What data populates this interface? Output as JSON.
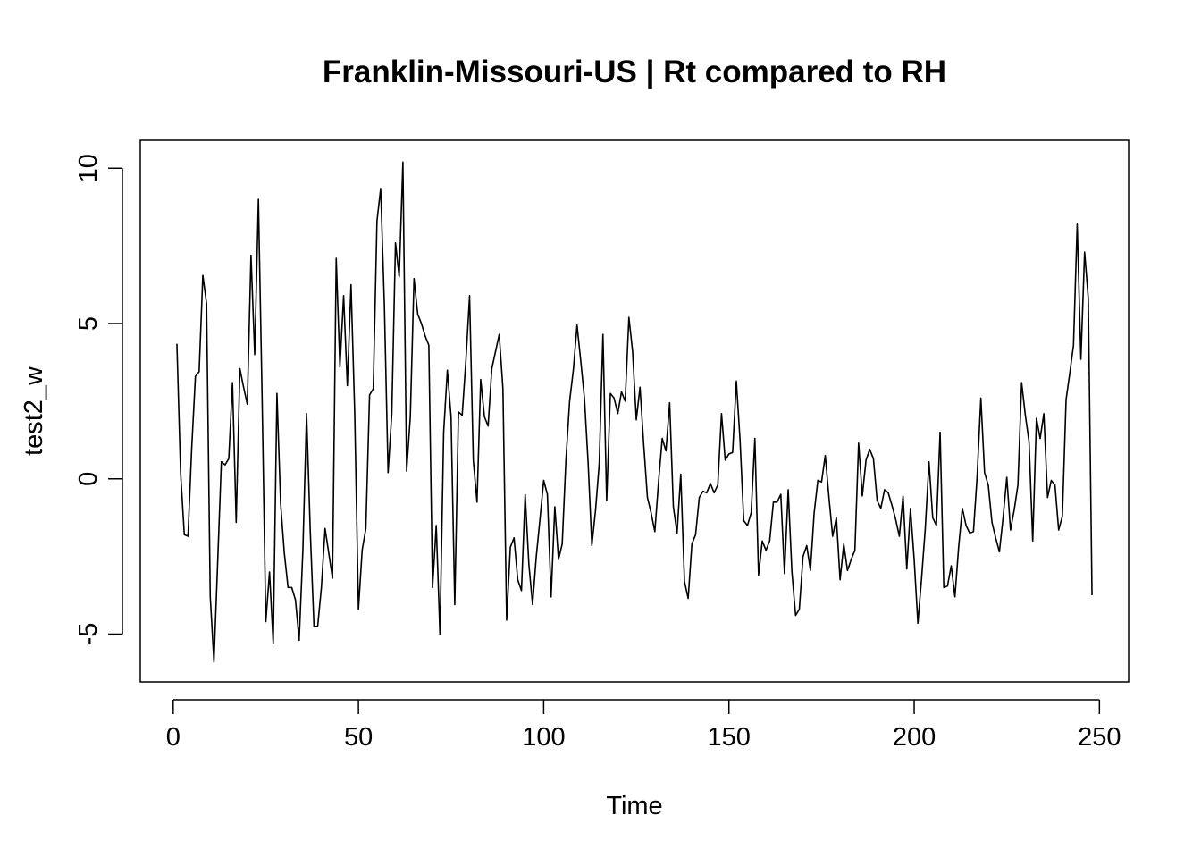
{
  "chart_data": {
    "type": "line",
    "title": "Franklin-Missouri-US | Rt compared to RH",
    "xlabel": "Time",
    "ylabel": "test2_w",
    "xlim": [
      -8.88,
      257.88
    ],
    "ylim": [
      -6.54,
      10.9
    ],
    "x_ticks": [
      0,
      50,
      100,
      150,
      200,
      250
    ],
    "y_ticks": [
      -5,
      0,
      5,
      10
    ],
    "line_color": "#000000",
    "x_start": 1,
    "values": [
      4.35,
      0.2,
      -1.8,
      -1.85,
      1.0,
      3.3,
      3.45,
      6.55,
      5.65,
      -3.8,
      -5.9,
      -2.7,
      0.55,
      0.45,
      0.65,
      3.1,
      -1.4,
      3.55,
      2.95,
      2.4,
      7.2,
      4.0,
      9.0,
      2.6,
      -4.6,
      -3.0,
      -5.3,
      2.75,
      -0.8,
      -2.4,
      -3.5,
      -3.5,
      -3.9,
      -5.2,
      -2.3,
      2.1,
      -1.7,
      -4.75,
      -4.75,
      -3.5,
      -1.6,
      -2.4,
      -3.2,
      7.1,
      3.6,
      5.9,
      3.0,
      6.25,
      2.1,
      -4.2,
      -2.3,
      -1.6,
      2.7,
      2.9,
      8.3,
      9.35,
      5.6,
      0.2,
      2.1,
      7.6,
      6.5,
      10.2,
      0.25,
      2.0,
      6.45,
      5.3,
      5.0,
      4.6,
      4.3,
      -3.5,
      -1.5,
      -5.0,
      1.5,
      3.5,
      2.0,
      -4.05,
      2.15,
      2.05,
      3.8,
      5.9,
      0.6,
      -0.75,
      3.2,
      2.0,
      1.7,
      3.55,
      4.1,
      4.65,
      2.9,
      -4.55,
      -2.2,
      -1.9,
      -3.25,
      -3.6,
      -0.5,
      -2.75,
      -4.05,
      -2.5,
      -1.3,
      -0.05,
      -0.5,
      -3.8,
      -0.9,
      -2.6,
      -2.1,
      0.6,
      2.5,
      3.5,
      4.95,
      3.8,
      2.6,
      0.5,
      -2.15,
      -1.0,
      0.5,
      4.65,
      -0.7,
      2.75,
      2.6,
      2.1,
      2.8,
      2.5,
      5.2,
      4.1,
      1.9,
      2.95,
      1.1,
      -0.6,
      -1.1,
      -1.7,
      -0.1,
      1.3,
      0.9,
      2.45,
      -0.9,
      -1.75,
      0.15,
      -3.3,
      -3.85,
      -2.1,
      -1.8,
      -0.6,
      -0.4,
      -0.45,
      -0.15,
      -0.45,
      -0.2,
      2.1,
      0.6,
      0.8,
      0.85,
      3.15,
      1.25,
      -1.35,
      -1.5,
      -1.1,
      1.3,
      -3.1,
      -2.0,
      -2.3,
      -2.0,
      -0.75,
      -0.75,
      -0.5,
      -3.05,
      -0.35,
      -3.0,
      -4.4,
      -4.2,
      -2.5,
      -2.15,
      -2.95,
      -1.1,
      -0.05,
      -0.1,
      0.75,
      -0.6,
      -1.85,
      -1.25,
      -3.25,
      -2.1,
      -2.95,
      -2.6,
      -2.3,
      1.15,
      -0.55,
      0.6,
      0.95,
      0.65,
      -0.7,
      -0.95,
      -0.35,
      -0.45,
      -0.85,
      -1.3,
      -1.85,
      -0.55,
      -2.9,
      -0.95,
      -2.6,
      -4.65,
      -3.2,
      -1.6,
      0.55,
      -1.25,
      -1.5,
      1.5,
      -3.5,
      -3.45,
      -2.8,
      -3.8,
      -2.2,
      -0.95,
      -1.5,
      -1.75,
      -1.7,
      0.1,
      2.6,
      0.2,
      -0.2,
      -1.4,
      -1.9,
      -2.35,
      -1.25,
      0.05,
      -1.65,
      -1.0,
      -0.2,
      3.1,
      2.05,
      1.2,
      -2.0,
      1.95,
      1.3,
      2.1,
      -0.6,
      -0.05,
      -0.2,
      -1.65,
      -1.2,
      2.55,
      3.4,
      4.3,
      8.2,
      3.85,
      7.3,
      5.8,
      -3.75
    ]
  }
}
